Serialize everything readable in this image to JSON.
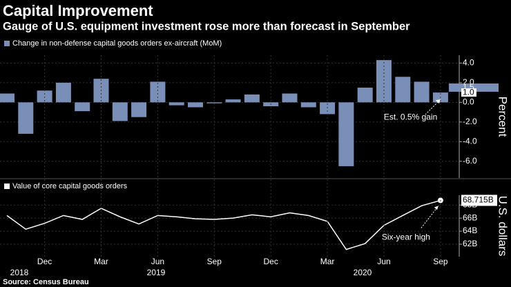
{
  "title": "Capital Improvement",
  "subtitle": "Gauge of U.S. equipment investment rose more than forecast in September",
  "source": "Source: Census Bureau",
  "x_axis": {
    "categories": [
      null,
      null,
      "Dec",
      null,
      null,
      "Mar",
      null,
      null,
      "Jun",
      null,
      null,
      "Sep",
      null,
      null,
      "Dec",
      null,
      null,
      "Mar",
      null,
      null,
      "Jun",
      null,
      null,
      "Sep"
    ],
    "years": [
      "2018",
      "2019",
      "2020"
    ]
  },
  "chart_data": [
    {
      "type": "bar",
      "legend": "Change in non-defense capital goods orders ex-aircraft (MoM)",
      "color": "#7a8fb8",
      "values": [
        0.9,
        -3.2,
        1.2,
        2.0,
        -0.9,
        2.4,
        -1.9,
        -1.5,
        2.1,
        -0.3,
        -0.5,
        -0.1,
        0.3,
        0.8,
        -0.4,
        0.9,
        -0.5,
        -1.2,
        -6.5,
        1.5,
        4.3,
        2.6,
        2.1,
        1.0
      ],
      "ylim": [
        -7.7,
        4.8
      ],
      "yticks": [
        {
          "value": 4.0,
          "label": "4.0"
        },
        {
          "value": 2.0,
          "label": "2.0"
        },
        {
          "value": 0.0,
          "label": "0.0"
        },
        {
          "value": -2.0,
          "label": "-2.0"
        },
        {
          "value": -4.0,
          "label": "-4.0"
        },
        {
          "value": -6.0,
          "label": "-6.0"
        }
      ],
      "highlights": [
        {
          "value": 1.5,
          "label": "1.5"
        },
        {
          "value": 1.0,
          "label": "1.0"
        }
      ],
      "ylabel": "Percent",
      "annotation": "Est. 0.5% gain",
      "grid": true
    },
    {
      "type": "line",
      "legend": "Value of core capital goods orders",
      "color": "#ffffff",
      "values": [
        66.4,
        64.3,
        65.2,
        66.4,
        65.8,
        67.5,
        66.2,
        65.1,
        66.4,
        66.2,
        65.9,
        65.8,
        66.0,
        66.5,
        66.2,
        66.8,
        66.4,
        65.5,
        61.2,
        62.1,
        64.9,
        66.4,
        67.9,
        68.715
      ],
      "end_label": "68.715B",
      "ylim": [
        60.1,
        69.5
      ],
      "yticks": [
        {
          "value": 62,
          "label": "62B"
        },
        {
          "value": 64,
          "label": "64B"
        },
        {
          "value": 66,
          "label": "66B"
        },
        {
          "value": 68,
          "label": "68B"
        }
      ],
      "ylabel": "U.S. dollars",
      "annotation": "Six-year high",
      "grid": true
    }
  ]
}
